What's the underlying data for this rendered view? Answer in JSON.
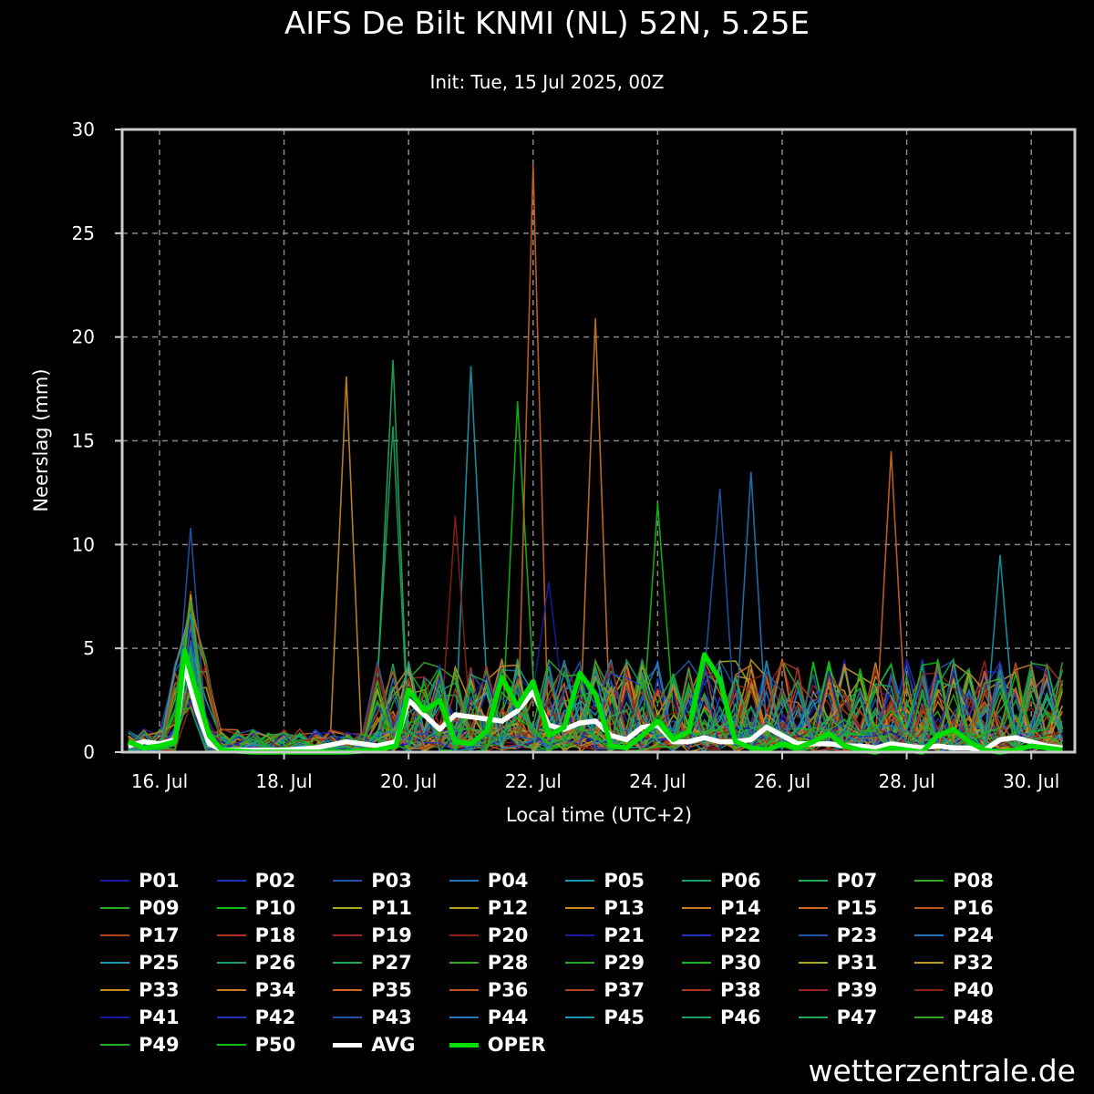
{
  "title": "AIFS De Bilt KNMI (NL) 52N, 5.25E",
  "subtitle": "Init: Tue, 15 Jul 2025, 00Z",
  "watermark": "wetterzentrale.de",
  "chart_data": {
    "type": "line",
    "xlabel": "Local time (UTC+2)",
    "ylabel": "Neerslag (mm)",
    "xlim_days": [
      15.4,
      30.7
    ],
    "ylim": [
      0,
      30
    ],
    "yticks": [
      0,
      5,
      10,
      15,
      20,
      25,
      30
    ],
    "xticks": [
      {
        "day": 16,
        "label": "16. Jul"
      },
      {
        "day": 18,
        "label": "18. Jul"
      },
      {
        "day": 20,
        "label": "20. Jul"
      },
      {
        "day": 22,
        "label": "22. Jul"
      },
      {
        "day": 24,
        "label": "24. Jul"
      },
      {
        "day": 26,
        "label": "26. Jul"
      },
      {
        "day": 28,
        "label": "28. Jul"
      },
      {
        "day": 30,
        "label": "30. Jul"
      }
    ],
    "grid": true,
    "legend_position": "bottom",
    "colors": {
      "avg": "#ffffff",
      "oper": "#00dd00",
      "members": [
        "#1a1aa0",
        "#2233bb",
        "#2255aa",
        "#2277bb",
        "#1a99aa",
        "#1aa066",
        "#22aa55",
        "#33aa22",
        "#22aa22",
        "#11bb11",
        "#aaaa22",
        "#bb9922",
        "#cc8822",
        "#cc7722",
        "#cc6622",
        "#bb5522",
        "#aa4422",
        "#aa3322",
        "#992222",
        "#882211"
      ]
    },
    "series": [
      {
        "name": "P01"
      },
      {
        "name": "P02"
      },
      {
        "name": "P03"
      },
      {
        "name": "P04"
      },
      {
        "name": "P05"
      },
      {
        "name": "P06"
      },
      {
        "name": "P07"
      },
      {
        "name": "P08"
      },
      {
        "name": "P09"
      },
      {
        "name": "P10"
      },
      {
        "name": "P11"
      },
      {
        "name": "P12"
      },
      {
        "name": "P13"
      },
      {
        "name": "P14"
      },
      {
        "name": "P15"
      },
      {
        "name": "P16"
      },
      {
        "name": "P17"
      },
      {
        "name": "P18"
      },
      {
        "name": "P19"
      },
      {
        "name": "P20"
      },
      {
        "name": "P21"
      },
      {
        "name": "P22"
      },
      {
        "name": "P23"
      },
      {
        "name": "P24"
      },
      {
        "name": "P25"
      },
      {
        "name": "P26"
      },
      {
        "name": "P27"
      },
      {
        "name": "P28"
      },
      {
        "name": "P29"
      },
      {
        "name": "P30"
      },
      {
        "name": "P31"
      },
      {
        "name": "P32"
      },
      {
        "name": "P33"
      },
      {
        "name": "P34"
      },
      {
        "name": "P35"
      },
      {
        "name": "P36"
      },
      {
        "name": "P37"
      },
      {
        "name": "P38"
      },
      {
        "name": "P39"
      },
      {
        "name": "P40"
      },
      {
        "name": "P41"
      },
      {
        "name": "P42"
      },
      {
        "name": "P43"
      },
      {
        "name": "P44"
      },
      {
        "name": "P45"
      },
      {
        "name": "P46"
      },
      {
        "name": "P47"
      },
      {
        "name": "P48"
      },
      {
        "name": "P49"
      },
      {
        "name": "P50"
      },
      {
        "name": "AVG",
        "x": [
          15.5,
          15.75,
          16.0,
          16.25,
          16.4,
          16.6,
          16.8,
          17.0,
          17.5,
          18.0,
          18.5,
          19.0,
          19.5,
          19.8,
          20.0,
          20.25,
          20.5,
          20.75,
          21.0,
          21.25,
          21.5,
          21.75,
          22.0,
          22.25,
          22.5,
          22.75,
          23.0,
          23.25,
          23.5,
          23.75,
          24.0,
          24.25,
          24.5,
          24.75,
          25.0,
          25.25,
          25.5,
          25.75,
          26.0,
          26.25,
          26.5,
          26.75,
          27.0,
          27.25,
          27.5,
          27.75,
          28.0,
          28.25,
          28.5,
          28.75,
          29.0,
          29.25,
          29.5,
          29.75,
          30.0,
          30.25,
          30.5
        ],
        "values": [
          0.3,
          0.5,
          0.4,
          0.6,
          4.2,
          2.0,
          0.4,
          0.1,
          0.1,
          0.1,
          0.2,
          0.5,
          0.3,
          0.5,
          2.5,
          1.8,
          1.1,
          1.8,
          1.7,
          1.6,
          1.5,
          2.0,
          2.9,
          1.3,
          1.1,
          1.4,
          1.5,
          0.8,
          0.6,
          1.2,
          1.3,
          0.5,
          0.5,
          0.7,
          0.5,
          0.5,
          0.6,
          1.2,
          0.8,
          0.4,
          0.4,
          0.4,
          0.3,
          0.3,
          0.2,
          0.4,
          0.3,
          0.2,
          0.3,
          0.2,
          0.2,
          0.1,
          0.6,
          0.7,
          0.5,
          0.3,
          0.2
        ]
      },
      {
        "name": "OPER",
        "x": [
          15.5,
          15.75,
          16.0,
          16.25,
          16.4,
          16.6,
          16.8,
          17.0,
          17.5,
          18.0,
          18.5,
          19.0,
          19.5,
          19.8,
          20.0,
          20.25,
          20.5,
          20.75,
          21.0,
          21.25,
          21.5,
          21.75,
          22.0,
          22.25,
          22.5,
          22.75,
          23.0,
          23.25,
          23.5,
          23.75,
          24.0,
          24.25,
          24.5,
          24.75,
          25.0,
          25.25,
          25.5,
          25.75,
          26.0,
          26.25,
          26.5,
          26.75,
          27.0,
          27.25,
          27.5,
          27.75,
          28.0,
          28.25,
          28.5,
          28.75,
          29.0,
          29.25,
          29.5,
          29.75,
          30.0,
          30.25,
          30.5
        ],
        "values": [
          0.5,
          0.2,
          0.3,
          0.5,
          4.9,
          2.8,
          0.8,
          0.1,
          0.0,
          0.0,
          0.0,
          0.0,
          0.1,
          0.3,
          3.0,
          2.0,
          2.5,
          0.5,
          0.4,
          1.0,
          3.6,
          2.2,
          3.4,
          0.8,
          1.2,
          3.8,
          2.8,
          0.3,
          0.2,
          0.8,
          1.5,
          0.6,
          1.0,
          4.7,
          3.5,
          0.5,
          0.2,
          0.1,
          0.4,
          0.2,
          0.5,
          0.9,
          0.3,
          0.1,
          0.0,
          0.2,
          0.1,
          0.0,
          0.8,
          1.1,
          0.5,
          0.1,
          0.0,
          0.1,
          0.3,
          0.2,
          0.1
        ]
      }
    ]
  }
}
